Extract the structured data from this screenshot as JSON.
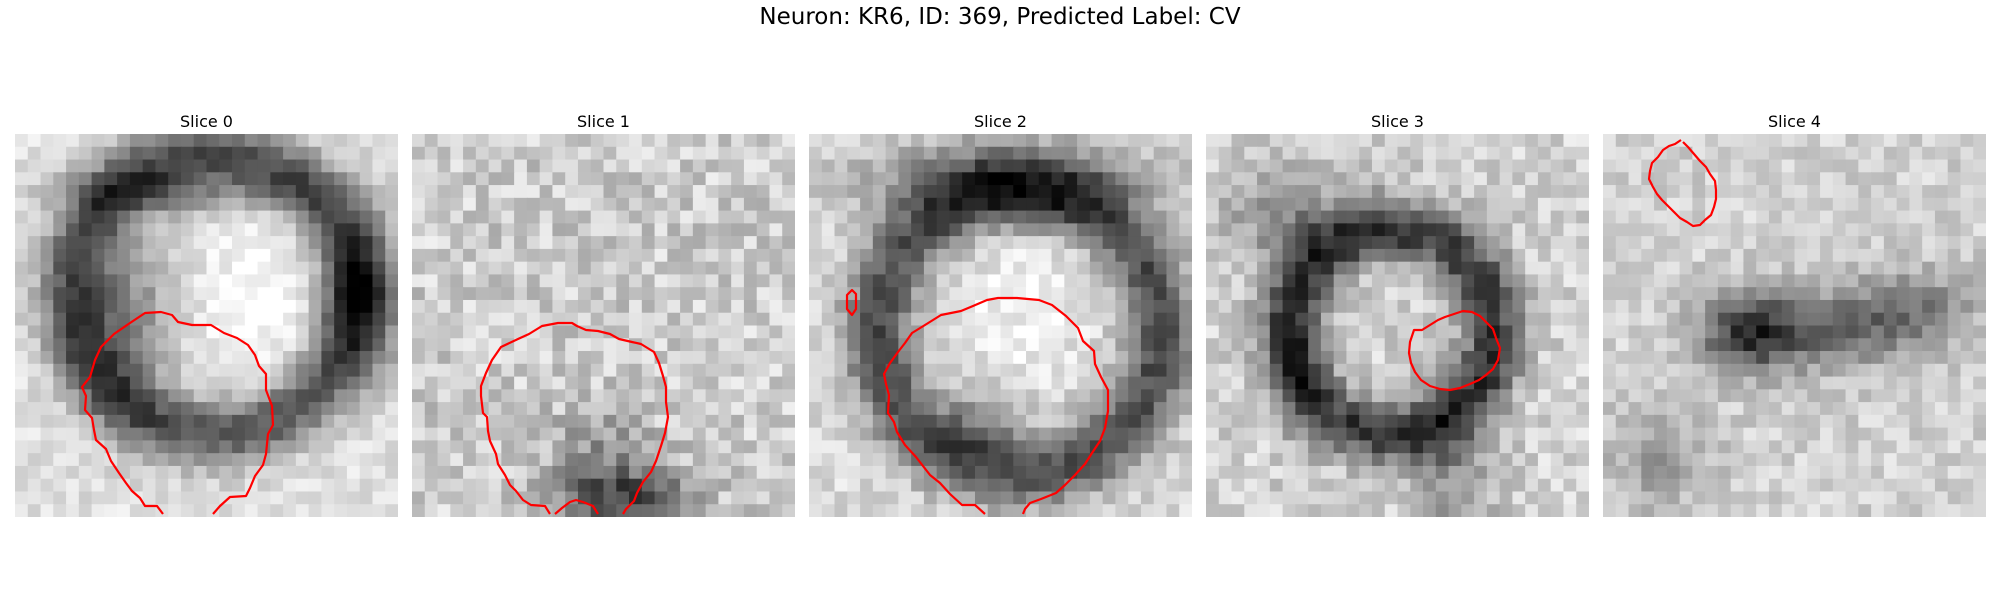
{
  "figure": {
    "title": "Neuron: KR6, ID: 369, Predicted Label: CV"
  },
  "panels": [
    {
      "title": "Slice 0",
      "texture": "blob-right-with-dark-rim"
    },
    {
      "title": "Slice 1",
      "texture": "noisy-light"
    },
    {
      "title": "Slice 2",
      "texture": "round-vesicle-dark-ring"
    },
    {
      "title": "Slice 3",
      "texture": "small-vesicle-dark-ring"
    },
    {
      "title": "Slice 4",
      "texture": "dark-streak-center"
    }
  ],
  "colors": {
    "contour": "#ff0000",
    "background": "#ffffff"
  }
}
